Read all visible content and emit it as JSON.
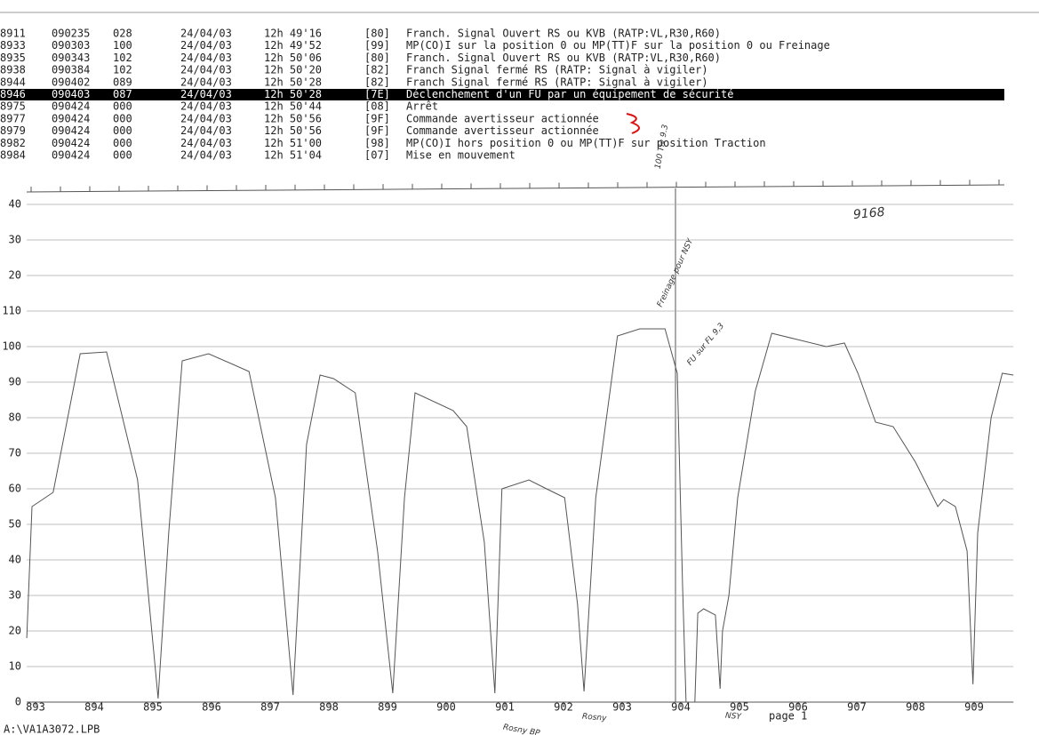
{
  "log": {
    "highlighted_row": 5,
    "rows": [
      [
        "8911",
        "090235",
        "028",
        "24/04/03",
        "12h 49'16",
        "[80]",
        "Franch. Signal Ouvert RS ou KVB (RATP:VL,R30,R60)"
      ],
      [
        "8933",
        "090303",
        "100",
        "24/04/03",
        "12h 49'52",
        "[99]",
        "MP(CO)I sur la position 0 ou MP(TT)F sur la position 0 ou Freinage"
      ],
      [
        "8935",
        "090343",
        "102",
        "24/04/03",
        "12h 50'06",
        "[80]",
        "Franch. Signal Ouvert RS ou KVB (RATP:VL,R30,R60)"
      ],
      [
        "8938",
        "090384",
        "102",
        "24/04/03",
        "12h 50'20",
        "[82]",
        "Franch Signal fermé RS (RATP: Signal à vigiler)"
      ],
      [
        "8944",
        "090402",
        "089",
        "24/04/03",
        "12h 50'28",
        "[82]",
        "Franch Signal fermé RS (RATP: Signal à vigiler)"
      ],
      [
        "8946",
        "090403",
        "087",
        "24/04/03",
        "12h 50'28",
        "[7E]",
        "Déclenchement d'un FU par un équipement de sécurité"
      ],
      [
        "8975",
        "090424",
        "000",
        "24/04/03",
        "12h 50'44",
        "[08]",
        "Arrêt"
      ],
      [
        "8977",
        "090424",
        "000",
        "24/04/03",
        "12h 50'56",
        "[9F]",
        "Commande avertisseur actionnée"
      ],
      [
        "8979",
        "090424",
        "000",
        "24/04/03",
        "12h 50'56",
        "[9F]",
        "Commande avertisseur actionnée"
      ],
      [
        "8982",
        "090424",
        "000",
        "24/04/03",
        "12h 51'00",
        "[98]",
        "MP(CO)I hors position 0 ou MP(TT)F sur position Traction"
      ],
      [
        "8984",
        "090424",
        "000",
        "24/04/03",
        "12h 51'04",
        "[07]",
        "Mise en mouvement"
      ]
    ]
  },
  "chart_data": {
    "type": "line",
    "x": [
      892.85,
      892.94,
      893.3,
      893.76,
      894.21,
      894.74,
      895.09,
      895.27,
      895.5,
      895.95,
      896.64,
      897.09,
      897.39,
      897.62,
      897.85,
      898.08,
      898.45,
      898.83,
      899.09,
      899.29,
      899.47,
      900.12,
      900.35,
      900.65,
      900.83,
      900.95,
      901.41,
      901.71,
      902.02,
      902.24,
      902.35,
      902.55,
      902.92,
      903.3,
      903.73,
      903.94,
      904.03,
      904.09,
      904.24,
      904.29,
      904.39,
      904.59,
      904.67,
      904.71,
      904.82,
      904.97,
      905.27,
      905.55,
      906.48,
      906.79,
      907.02,
      907.32,
      907.62,
      908.0,
      908.38,
      908.48,
      908.68,
      908.88,
      908.98,
      909.06,
      909.29,
      909.48,
      909.67
    ],
    "series": [
      {
        "color": "#555555",
        "values": [
          18,
          55,
          59,
          98,
          98.5,
          62.5,
          1,
          47.5,
          96,
          98,
          93,
          57.5,
          2,
          72.5,
          92,
          91,
          87,
          42.5,
          2.5,
          57.5,
          87,
          82,
          77.5,
          45,
          2.5,
          60,
          62.5,
          60,
          57.5,
          27.5,
          3,
          57.5,
          103,
          105,
          105,
          92.5,
          32.5,
          0,
          0,
          25,
          26.25,
          24.5,
          3.75,
          20,
          30,
          57.5,
          87.5,
          103.75,
          100,
          101,
          92.5,
          78.75,
          77.5,
          67.5,
          55,
          57,
          55,
          42.5,
          5,
          47.5,
          80,
          92.5,
          92
        ]
      }
    ],
    "xlim": [
      892.85,
      909.67
    ],
    "ylim": [
      0,
      140
    ],
    "xticks": [
      893,
      894,
      895,
      896,
      897,
      898,
      899,
      900,
      901,
      902,
      903,
      904,
      905,
      906,
      907,
      908,
      909
    ],
    "yticks": [
      0,
      10,
      20,
      30,
      40,
      50,
      60,
      70,
      80,
      90,
      100,
      110,
      {
        "value": 120,
        "label": "20"
      },
      {
        "value": 130,
        "label": "30"
      },
      {
        "value": 140,
        "label": "40"
      }
    ],
    "grid": true,
    "annotations": [
      "100 Tiv 9.3",
      "9168",
      "Freinage pour NSY",
      "FU sur FL 9,3",
      "Rosny BP",
      "Rosny",
      "NSY"
    ]
  },
  "footer": {
    "page": "page 1",
    "file": "A:\\VA1A3072.LPB"
  }
}
